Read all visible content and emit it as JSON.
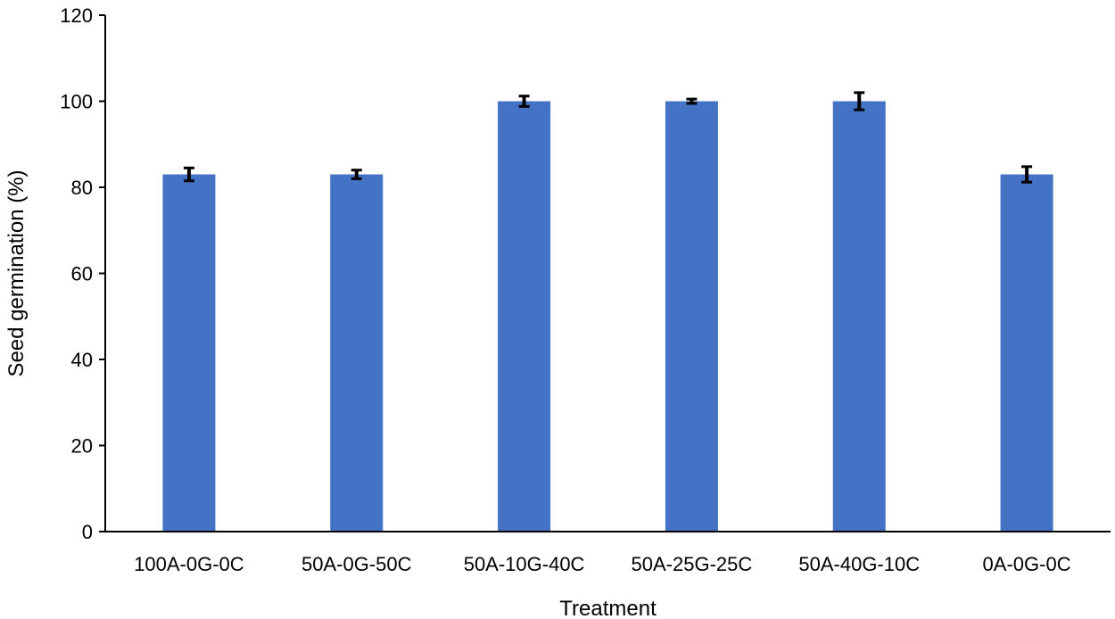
{
  "chart_data": {
    "type": "bar",
    "title": "",
    "xlabel": "Treatment",
    "ylabel": "Seed germination (%)",
    "ylim": [
      0,
      120
    ],
    "yticks": [
      0,
      20,
      40,
      60,
      80,
      100,
      120
    ],
    "grid": false,
    "categories": [
      "100A-0G-0C",
      "50A-0G-50C",
      "50A-10G-40C",
      "50A-25G-25C",
      "50A-40G-10C",
      "0A-0G-0C"
    ],
    "values": [
      83,
      83,
      100,
      100,
      100,
      83
    ],
    "error": [
      1.5,
      1.0,
      1.2,
      0.5,
      2.0,
      1.8
    ],
    "bar_color": "#4472C4",
    "error_color": "#000000"
  }
}
